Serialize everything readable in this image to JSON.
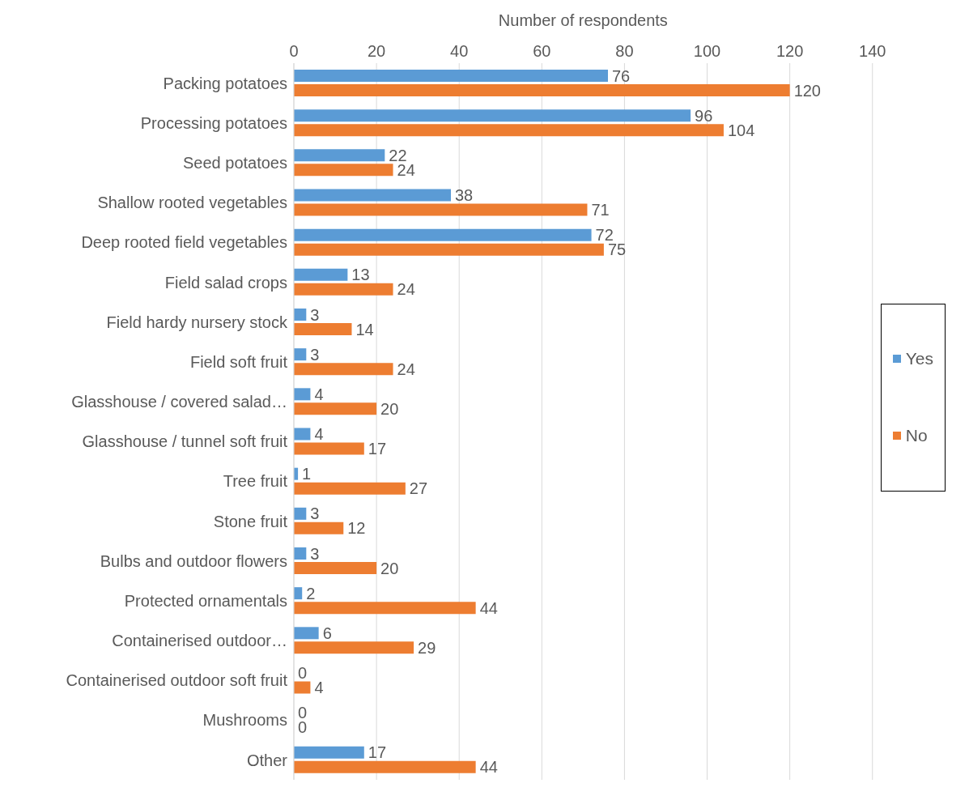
{
  "chart_data": {
    "type": "bar",
    "orientation": "horizontal",
    "xlabel": "Number of respondents",
    "categories": [
      "Packing potatoes",
      "Processing potatoes",
      "Seed potatoes",
      "Shallow rooted vegetables",
      "Deep rooted field vegetables",
      "Field salad crops",
      "Field hardy nursery stock",
      "Field soft fruit",
      "Glasshouse / covered salad…",
      "Glasshouse / tunnel soft fruit",
      "Tree fruit",
      "Stone fruit",
      "Bulbs and outdoor flowers",
      "Protected ornamentals",
      "Containerised outdoor…",
      "Containerised outdoor soft fruit",
      "Mushrooms",
      "Other"
    ],
    "series": [
      {
        "name": "Yes",
        "color": "#5b9bd5",
        "values": [
          76,
          96,
          22,
          38,
          72,
          13,
          3,
          3,
          4,
          4,
          1,
          3,
          3,
          2,
          6,
          0,
          0,
          17
        ]
      },
      {
        "name": "No",
        "color": "#ed7d31",
        "values": [
          120,
          104,
          24,
          71,
          75,
          24,
          14,
          24,
          20,
          17,
          27,
          12,
          20,
          44,
          29,
          4,
          0,
          44
        ]
      }
    ],
    "xlim": [
      0,
      140
    ],
    "xticks": [
      0,
      20,
      40,
      60,
      80,
      100,
      120,
      140
    ],
    "grid": "x",
    "legend": "right",
    "data_labels": true
  }
}
